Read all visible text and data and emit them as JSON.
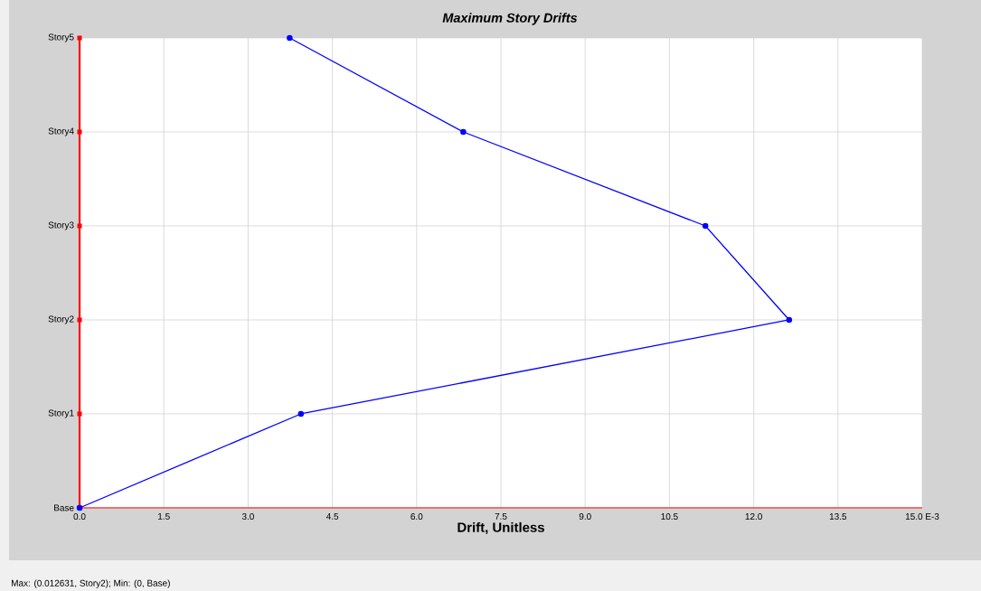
{
  "chart_data": {
    "type": "line",
    "orientation": "horizontal",
    "title": "Maximum Story Drifts",
    "xlabel": "Drift, Unitless",
    "categories": [
      "Story5",
      "Story4",
      "Story3",
      "Story2",
      "Story1",
      "Base"
    ],
    "series": [
      {
        "color": "#0000ff",
        "values": [
          3.74,
          6.83,
          11.14,
          12.631,
          3.94,
          0
        ]
      }
    ],
    "xlim": [
      0,
      15
    ],
    "xticks": [
      {
        "value": 0,
        "label": "0.0"
      },
      {
        "value": 1.5,
        "label": "1.5"
      },
      {
        "value": 3,
        "label": "3.0"
      },
      {
        "value": 4.5,
        "label": "4.5"
      },
      {
        "value": 6,
        "label": "6.0"
      },
      {
        "value": 7.5,
        "label": "7.5"
      },
      {
        "value": 9,
        "label": "9.0"
      },
      {
        "value": 10.5,
        "label": "10.5"
      },
      {
        "value": 12,
        "label": "12.0"
      },
      {
        "value": 13.5,
        "label": "13.5"
      },
      {
        "value": 15,
        "label": "15.0 E-3"
      }
    ],
    "grid": true,
    "marker": "circle",
    "line_style": "solid",
    "annotations": [
      "Max: (0.012631, Story2);   Min: (0, Base)"
    ]
  }
}
